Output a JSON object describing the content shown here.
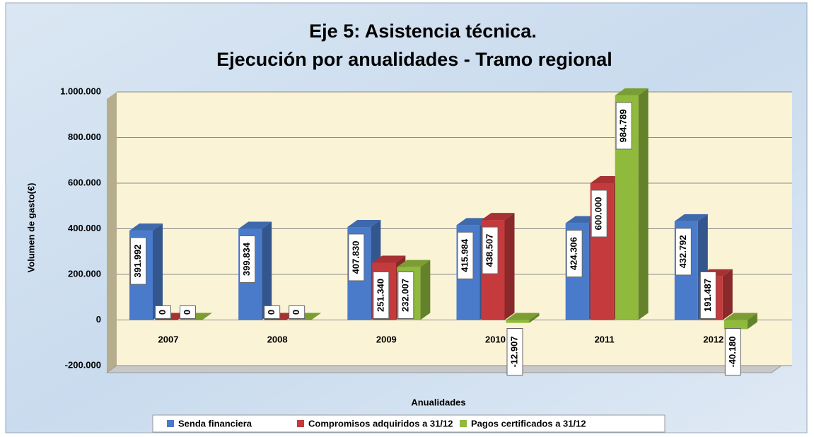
{
  "chart_data": {
    "type": "bar3d",
    "title": [
      "Eje 5: Asistencia técnica.",
      "Ejecución por anualidades - Tramo regional"
    ],
    "xlabel": "Anualidades",
    "ylabel": "Volumen de gasto(€)",
    "categories": [
      "2007",
      "2008",
      "2009",
      "2010",
      "2011",
      "2012"
    ],
    "series": [
      {
        "name": "Senda financiera",
        "color": "#4a7bcb",
        "values": [
          391992,
          399834,
          407830,
          415984,
          424306,
          432792
        ],
        "value_labels": [
          "391.992",
          "399.834",
          "407.830",
          "415.984",
          "424.306",
          "432.792"
        ]
      },
      {
        "name": "Compromisos adquiridos a 31/12",
        "color": "#c53a3c",
        "values": [
          0,
          0,
          251340,
          438507,
          600000,
          191487
        ],
        "value_labels": [
          "0",
          "0",
          "251.340",
          "438.507",
          "600.000",
          "191.487"
        ]
      },
      {
        "name": "Pagos certificados a 31/12",
        "color": "#8fba3c",
        "values": [
          0,
          0,
          232007,
          -12907,
          984789,
          -40180
        ],
        "value_labels": [
          "0",
          "0",
          "232.007",
          "-12.907",
          "984.789",
          "-40.180"
        ]
      }
    ],
    "ylim": [
      -200000,
      1000000
    ],
    "yticks": [
      {
        "value": -200000,
        "label": "-200.000"
      },
      0,
      {
        "value": 200000,
        "label": "200.000"
      },
      {
        "value": 400000,
        "label": "400.000"
      },
      {
        "value": 600000,
        "label": "600.000"
      },
      {
        "value": 800000,
        "label": "800.000"
      },
      {
        "value": 1000000,
        "label": "1.000.000"
      }
    ],
    "grid": true,
    "legend": "bottom"
  }
}
